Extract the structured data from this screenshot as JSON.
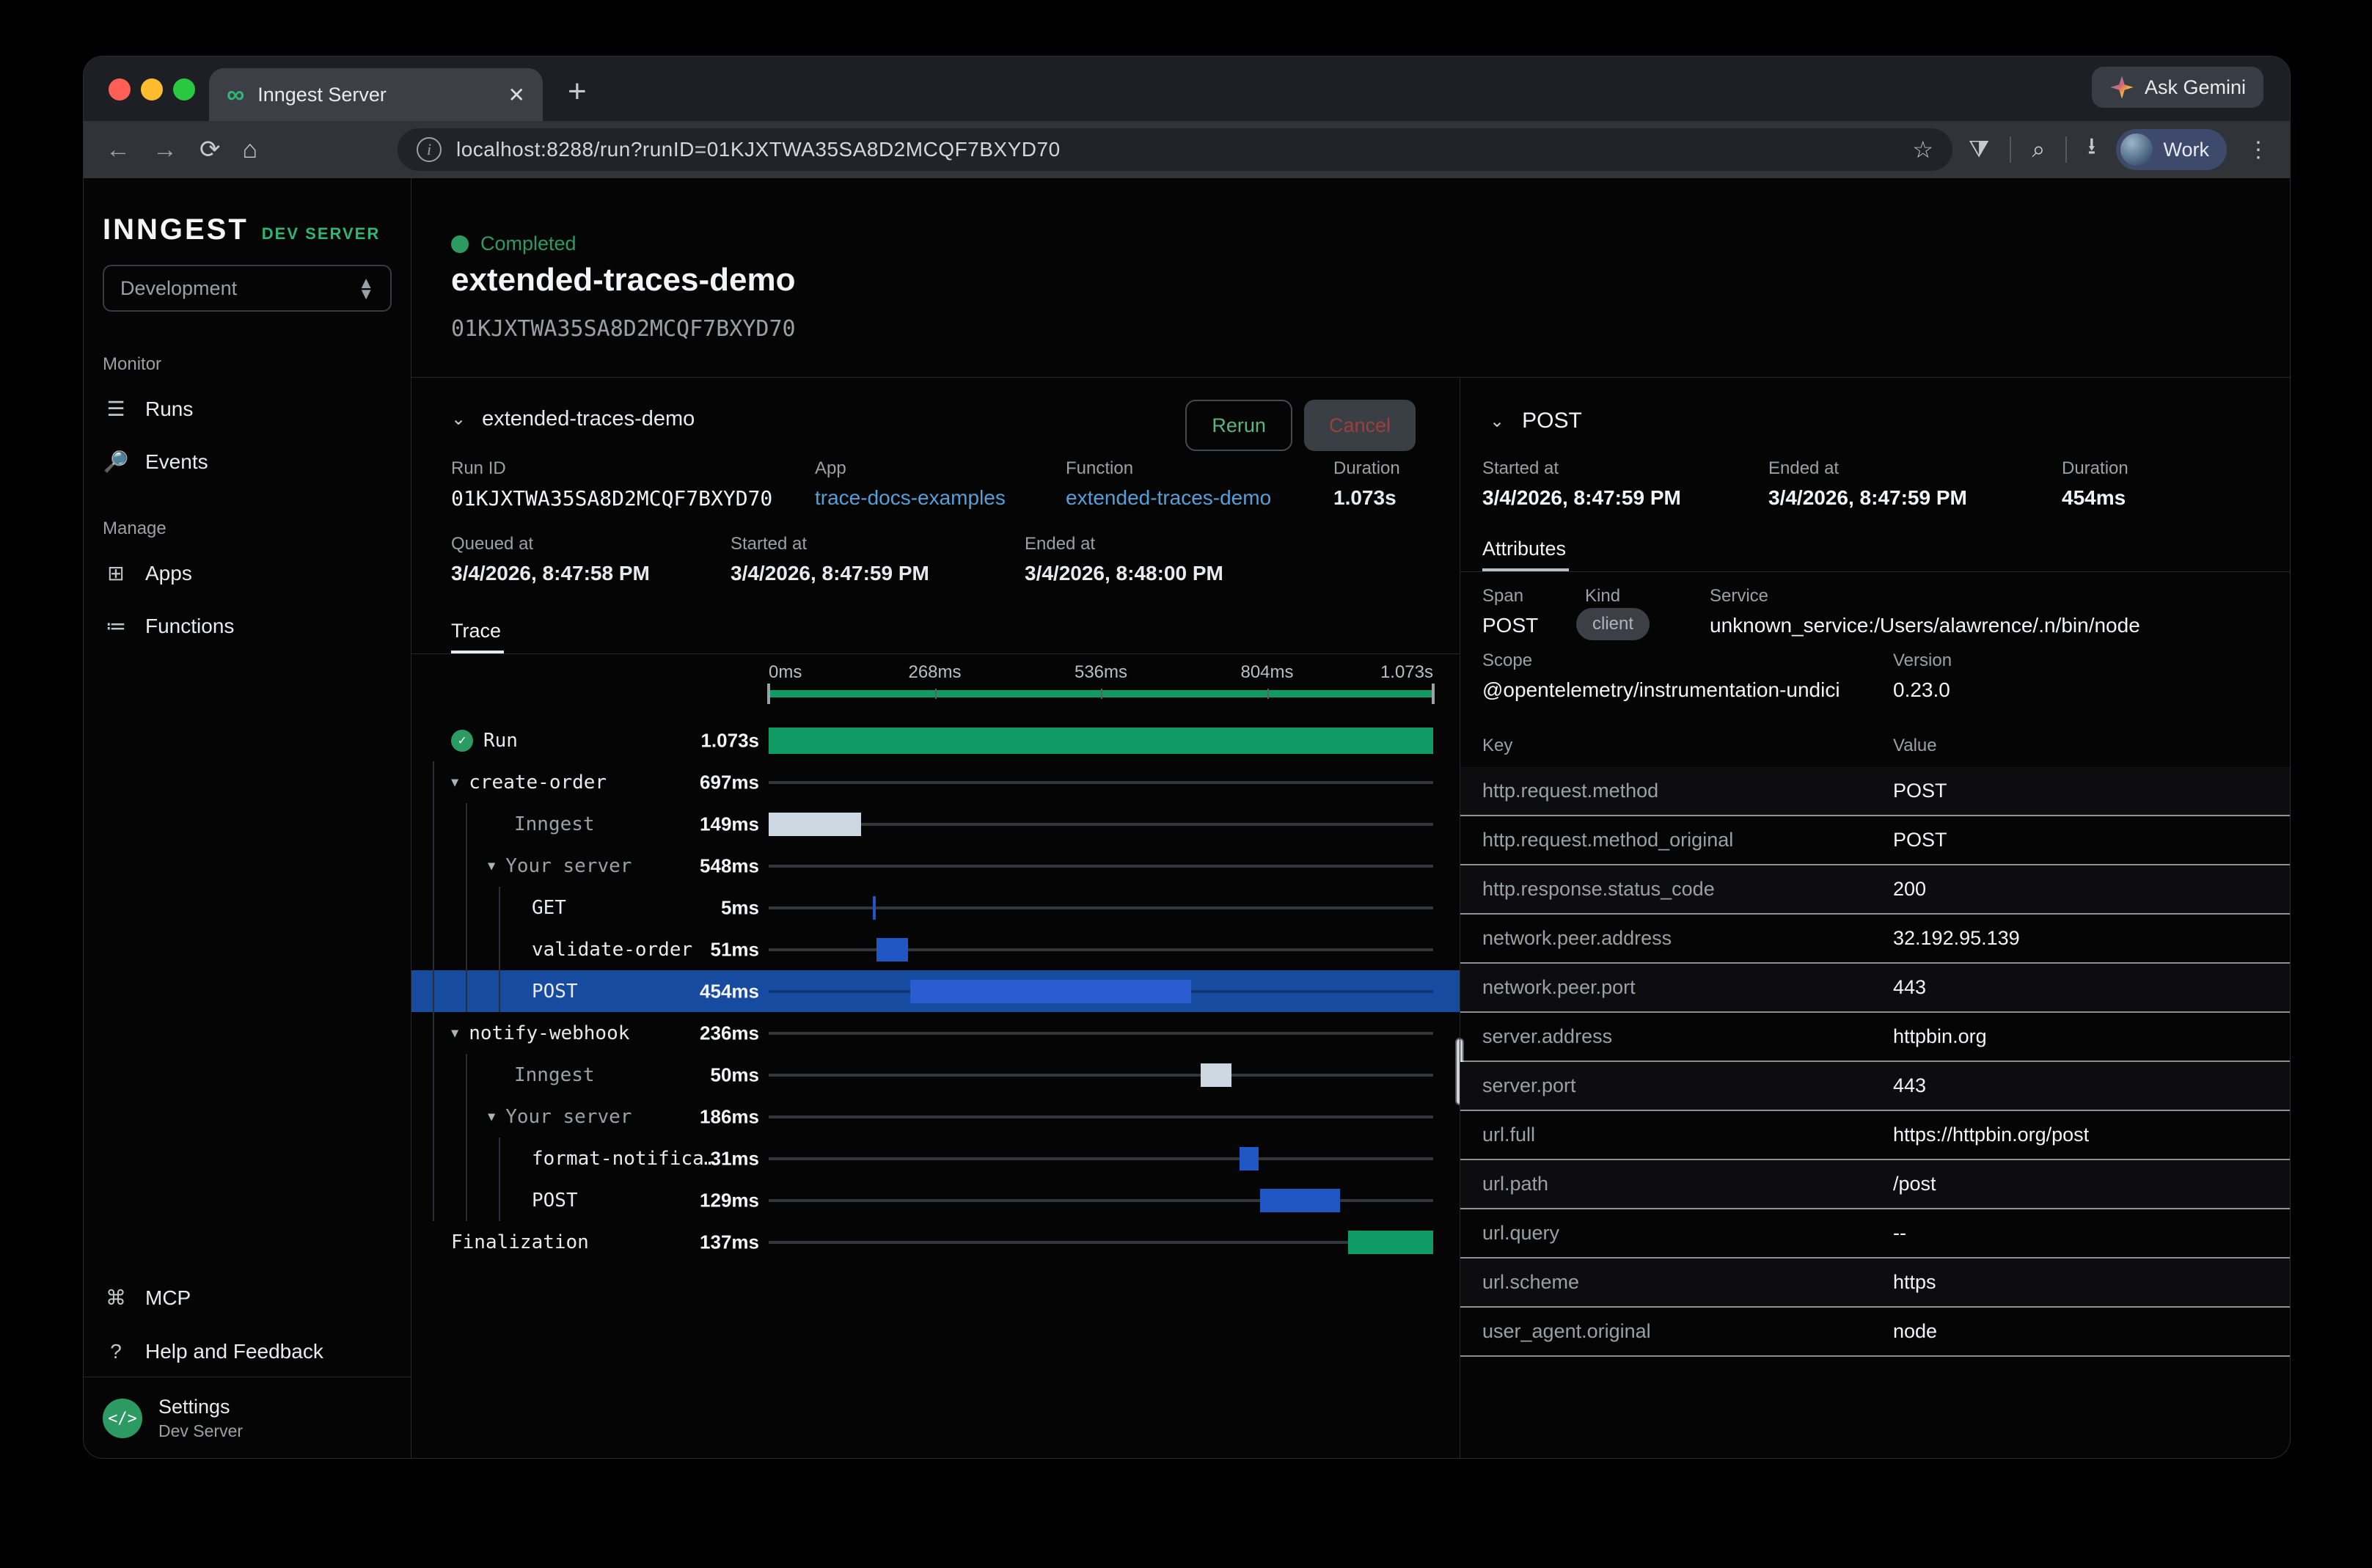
{
  "colors": {
    "green": "#0f9b63",
    "status_green": "#2c9b63",
    "blue_bar": "#2157c4",
    "blue_bright": "#2a5cd0",
    "selected_row": "#174b9f",
    "light_bar": "#ccd7e2",
    "link_blue": "#569fd8"
  },
  "browser": {
    "tab_title": "Inngest Server",
    "gemini_label": "Ask Gemini",
    "url": "localhost:8288/run?runID=01KJXTWA35SA8D2MCQF7BXYD70",
    "profile_label": "Work"
  },
  "sidebar": {
    "logo": "INNGEST",
    "logo_badge": "DEV SERVER",
    "env_selector": "Development",
    "sections": [
      {
        "label": "Monitor",
        "items": [
          {
            "name": "runs",
            "icon": "list",
            "label": "Runs"
          },
          {
            "name": "events",
            "icon": "doc-search",
            "label": "Events"
          }
        ]
      },
      {
        "label": "Manage",
        "items": [
          {
            "name": "apps",
            "icon": "grid",
            "label": "Apps"
          },
          {
            "name": "functions",
            "icon": "fn-list",
            "label": "Functions"
          }
        ]
      }
    ],
    "footer_items": [
      {
        "name": "mcp",
        "icon": "share",
        "label": "MCP"
      },
      {
        "name": "help",
        "icon": "question",
        "label": "Help and Feedback"
      }
    ],
    "settings": {
      "title": "Settings",
      "subtitle": "Dev Server",
      "icon": "</>"
    }
  },
  "run_header": {
    "status": "Completed",
    "title": "extended-traces-demo",
    "run_id": "01KJXTWA35SA8D2MCQF7BXYD70"
  },
  "trace_panel": {
    "header": {
      "name": "extended-traces-demo",
      "rerun_label": "Rerun",
      "cancel_label": "Cancel"
    },
    "meta": {
      "run_id_label": "Run ID",
      "run_id": "01KJXTWA35SA8D2MCQF7BXYD70",
      "app_label": "App",
      "app": "trace-docs-examples",
      "function_label": "Function",
      "function": "extended-traces-demo",
      "duration_label": "Duration",
      "duration": "1.073s",
      "queued_label": "Queued at",
      "queued": "3/4/2026, 8:47:58 PM",
      "started_label": "Started at",
      "started": "3/4/2026, 8:47:59 PM",
      "ended_label": "Ended at",
      "ended": "3/4/2026, 8:48:00 PM"
    },
    "tab_label": "Trace",
    "axis": [
      "0ms",
      "268ms",
      "536ms",
      "804ms",
      "1.073s"
    ],
    "total_ms": 1073,
    "rows": [
      {
        "label": "Run",
        "duration": "1.073s",
        "depth": 0,
        "icon": "check",
        "bar": "bar",
        "color": "green",
        "start": 0,
        "len": 1073,
        "run": true
      },
      {
        "label": "create-order",
        "duration": "697ms",
        "depth": 1,
        "caret": true,
        "bar": "line",
        "start": 0,
        "len": 697
      },
      {
        "label": "Inngest",
        "duration": "149ms",
        "depth": 2,
        "dim": true,
        "bar": "bar",
        "color": "light",
        "start": 0,
        "len": 149
      },
      {
        "label": "Your server",
        "duration": "548ms",
        "depth": 2,
        "dim": true,
        "caret": true,
        "bar": "line",
        "start": 149,
        "len": 548
      },
      {
        "label": "GET",
        "duration": "5ms",
        "depth": 3,
        "bar": "bar",
        "color": "blue",
        "start": 168,
        "len": 5
      },
      {
        "label": "validate-order",
        "duration": "51ms",
        "depth": 3,
        "bar": "bar",
        "color": "blue",
        "start": 174,
        "len": 51
      },
      {
        "label": "POST",
        "duration": "454ms",
        "depth": 3,
        "selected": true,
        "bar": "bar",
        "color": "bright",
        "start": 228,
        "len": 454
      },
      {
        "label": "notify-webhook",
        "duration": "236ms",
        "depth": 1,
        "caret": true,
        "bar": "line",
        "start": 697,
        "len": 236
      },
      {
        "label": "Inngest",
        "duration": "50ms",
        "depth": 2,
        "dim": true,
        "bar": "bar",
        "color": "light",
        "start": 697,
        "len": 50
      },
      {
        "label": "Your server",
        "duration": "186ms",
        "depth": 2,
        "dim": true,
        "caret": true,
        "bar": "line",
        "start": 747,
        "len": 186
      },
      {
        "label": "format-notifica…",
        "duration": "31ms",
        "depth": 3,
        "bar": "bar",
        "color": "blue",
        "start": 760,
        "len": 31
      },
      {
        "label": "POST",
        "duration": "129ms",
        "depth": 3,
        "bar": "bar",
        "color": "blue",
        "start": 793,
        "len": 129
      },
      {
        "label": "Finalization",
        "duration": "137ms",
        "depth": 0,
        "bar": "bar",
        "color": "green",
        "start": 936,
        "len": 137
      }
    ]
  },
  "details_panel": {
    "header": "POST",
    "started_label": "Started at",
    "started": "3/4/2026, 8:47:59 PM",
    "ended_label": "Ended at",
    "ended": "3/4/2026, 8:47:59 PM",
    "duration_label": "Duration",
    "duration": "454ms",
    "tab_label": "Attributes",
    "span_label": "Span",
    "span": "POST",
    "kind_label": "Kind",
    "kind": "client",
    "service_label": "Service",
    "service": "unknown_service:/Users/alawrence/.n/bin/node",
    "scope_label": "Scope",
    "scope": "@opentelemetry/instrumentation-undici",
    "version_label": "Version",
    "version": "0.23.0",
    "table": {
      "key_header": "Key",
      "value_header": "Value",
      "rows": [
        {
          "key": "http.request.method",
          "value": "POST"
        },
        {
          "key": "http.request.method_original",
          "value": "POST"
        },
        {
          "key": "http.response.status_code",
          "value": "200"
        },
        {
          "key": "network.peer.address",
          "value": "32.192.95.139"
        },
        {
          "key": "network.peer.port",
          "value": "443"
        },
        {
          "key": "server.address",
          "value": "httpbin.org"
        },
        {
          "key": "server.port",
          "value": "443"
        },
        {
          "key": "url.full",
          "value": "https://httpbin.org/post"
        },
        {
          "key": "url.path",
          "value": "/post"
        },
        {
          "key": "url.query",
          "value": "--"
        },
        {
          "key": "url.scheme",
          "value": "https"
        },
        {
          "key": "user_agent.original",
          "value": "node"
        }
      ]
    }
  }
}
